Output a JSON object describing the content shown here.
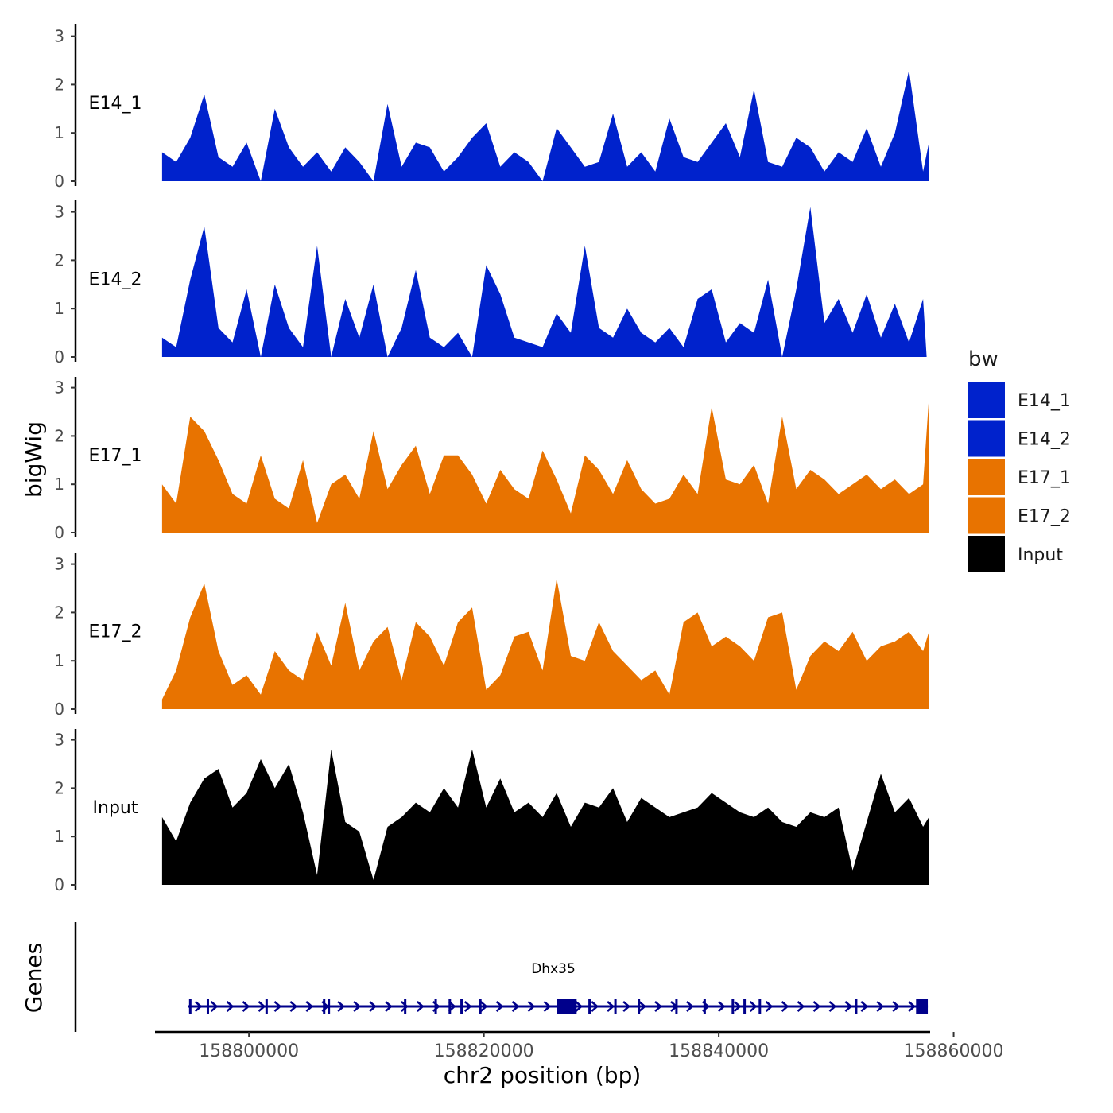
{
  "chart_data": {
    "type": "area",
    "y_axis_label": "bigWig",
    "genes_axis_label": "Genes",
    "x_axis_label": "chr2 position (bp)",
    "x_range": [
      158792000,
      158858000
    ],
    "x_ticks": [
      158800000,
      158820000,
      158840000,
      158860000
    ],
    "x_tick_labels": [
      "158800000",
      "158820000",
      "158840000",
      "158860000"
    ],
    "y_range": [
      0,
      3.2
    ],
    "y_ticks": [
      0,
      1,
      2,
      3
    ],
    "y_tick_labels": [
      "0",
      "1",
      "2",
      "3"
    ],
    "legend": {
      "title": "bw",
      "entries": [
        {
          "label": "E14_1",
          "color": "#0022CC"
        },
        {
          "label": "E14_2",
          "color": "#0022CC"
        },
        {
          "label": "E17_1",
          "color": "#E87300"
        },
        {
          "label": "E17_2",
          "color": "#E87300"
        },
        {
          "label": "Input",
          "color": "#000000"
        }
      ]
    },
    "tracks": [
      {
        "name": "E14_1",
        "color": "#0022CC",
        "x": [
          158792600,
          158793800,
          158795000,
          158796200,
          158797400,
          158798600,
          158799800,
          158801000,
          158802200,
          158803400,
          158804600,
          158805800,
          158807000,
          158808200,
          158809400,
          158810600,
          158811800,
          158813000,
          158814200,
          158815400,
          158816600,
          158817800,
          158819000,
          158820200,
          158821400,
          158822600,
          158823800,
          158825000,
          158826200,
          158827400,
          158828600,
          158829800,
          158831000,
          158832200,
          158833400,
          158834600,
          158835800,
          158837000,
          158838200,
          158839400,
          158840600,
          158841800,
          158843000,
          158844200,
          158845400,
          158846600,
          158847800,
          158849000,
          158850200,
          158851400,
          158852600,
          158853800,
          158855000,
          158856200,
          158857400,
          158857900
        ],
        "y": [
          0.6,
          0.4,
          0.9,
          1.8,
          0.5,
          0.3,
          0.8,
          0,
          1.5,
          0.7,
          0.3,
          0.6,
          0.2,
          0.7,
          0.4,
          0,
          1.6,
          0.3,
          0.8,
          0.7,
          0.2,
          0.5,
          0.9,
          1.2,
          0.3,
          0.6,
          0.4,
          0,
          1.1,
          0.7,
          0.3,
          0.4,
          1.4,
          0.3,
          0.6,
          0.2,
          1.3,
          0.5,
          0.4,
          0.8,
          1.2,
          0.5,
          1.9,
          0.4,
          0.3,
          0.9,
          0.7,
          0.2,
          0.6,
          0.4,
          1.1,
          0.3,
          1.0,
          2.3,
          0.2,
          0.8
        ]
      },
      {
        "name": "E14_2",
        "color": "#0022CC",
        "x": [
          158792600,
          158793800,
          158795000,
          158796200,
          158797400,
          158798600,
          158799800,
          158801000,
          158802200,
          158803400,
          158804600,
          158805800,
          158807000,
          158808200,
          158809400,
          158810600,
          158811800,
          158813000,
          158814200,
          158815400,
          158816600,
          158817800,
          158819000,
          158820200,
          158821400,
          158822600,
          158823800,
          158825000,
          158826200,
          158827400,
          158828600,
          158829800,
          158831000,
          158832200,
          158833400,
          158834600,
          158835800,
          158837000,
          158838200,
          158839400,
          158840600,
          158841800,
          158843000,
          158844200,
          158845400,
          158846600,
          158847800,
          158849000,
          158850200,
          158851400,
          158852600,
          158853800,
          158855000,
          158856200,
          158857400,
          158857700
        ],
        "y": [
          0.4,
          0.2,
          1.6,
          2.7,
          0.6,
          0.3,
          1.4,
          0,
          1.5,
          0.6,
          0.2,
          2.3,
          0,
          1.2,
          0.4,
          1.5,
          0,
          0.6,
          1.8,
          0.4,
          0.2,
          0.5,
          0,
          1.9,
          1.3,
          0.4,
          0.3,
          0.2,
          0.9,
          0.5,
          2.3,
          0.6,
          0.4,
          1.0,
          0.5,
          0.3,
          0.6,
          0.2,
          1.2,
          1.4,
          0.3,
          0.7,
          0.5,
          1.6,
          0,
          1.4,
          3.1,
          0.7,
          1.2,
          0.5,
          1.3,
          0.4,
          1.1,
          0.3,
          1.2,
          0
        ]
      },
      {
        "name": "E17_1",
        "color": "#E87300",
        "x": [
          158792600,
          158793800,
          158795000,
          158796200,
          158797400,
          158798600,
          158799800,
          158801000,
          158802200,
          158803400,
          158804600,
          158805800,
          158807000,
          158808200,
          158809400,
          158810600,
          158811800,
          158813000,
          158814200,
          158815400,
          158816600,
          158817800,
          158819000,
          158820200,
          158821400,
          158822600,
          158823800,
          158825000,
          158826200,
          158827400,
          158828600,
          158829800,
          158831000,
          158832200,
          158833400,
          158834600,
          158835800,
          158837000,
          158838200,
          158839400,
          158840600,
          158841800,
          158843000,
          158844200,
          158845400,
          158846600,
          158847800,
          158849000,
          158850200,
          158851400,
          158852600,
          158853800,
          158855000,
          158856200,
          158857400,
          158857900
        ],
        "y": [
          1.0,
          0.6,
          2.4,
          2.1,
          1.5,
          0.8,
          0.6,
          1.6,
          0.7,
          0.5,
          1.5,
          0.2,
          1.0,
          1.2,
          0.7,
          2.1,
          0.9,
          1.4,
          1.8,
          0.8,
          1.6,
          1.6,
          1.2,
          0.6,
          1.3,
          0.9,
          0.7,
          1.7,
          1.1,
          0.4,
          1.6,
          1.3,
          0.8,
          1.5,
          0.9,
          0.6,
          0.7,
          1.2,
          0.8,
          2.6,
          1.1,
          1.0,
          1.4,
          0.6,
          2.4,
          0.9,
          1.3,
          1.1,
          0.8,
          1.0,
          1.2,
          0.9,
          1.1,
          0.8,
          1.0,
          2.8
        ]
      },
      {
        "name": "E17_2",
        "color": "#E87300",
        "x": [
          158792600,
          158793800,
          158795000,
          158796200,
          158797400,
          158798600,
          158799800,
          158801000,
          158802200,
          158803400,
          158804600,
          158805800,
          158807000,
          158808200,
          158809400,
          158810600,
          158811800,
          158813000,
          158814200,
          158815400,
          158816600,
          158817800,
          158819000,
          158820200,
          158821400,
          158822600,
          158823800,
          158825000,
          158826200,
          158827400,
          158828600,
          158829800,
          158831000,
          158832200,
          158833400,
          158834600,
          158835800,
          158837000,
          158838200,
          158839400,
          158840600,
          158841800,
          158843000,
          158844200,
          158845400,
          158846600,
          158847800,
          158849000,
          158850200,
          158851400,
          158852600,
          158853800,
          158855000,
          158856200,
          158857400,
          158857900
        ],
        "y": [
          0.2,
          0.8,
          1.9,
          2.6,
          1.2,
          0.5,
          0.7,
          0.3,
          1.2,
          0.8,
          0.6,
          1.6,
          0.9,
          2.2,
          0.8,
          1.4,
          1.7,
          0.6,
          1.8,
          1.5,
          0.9,
          1.8,
          2.1,
          0.4,
          0.7,
          1.5,
          1.6,
          0.8,
          2.7,
          1.1,
          1.0,
          1.8,
          1.2,
          0.9,
          0.6,
          0.8,
          0.3,
          1.8,
          2.0,
          1.3,
          1.5,
          1.3,
          1.0,
          1.9,
          2.0,
          0.4,
          1.1,
          1.4,
          1.2,
          1.6,
          1.0,
          1.3,
          1.4,
          1.6,
          1.2,
          1.6
        ]
      },
      {
        "name": "Input",
        "color": "#000000",
        "x": [
          158792600,
          158793800,
          158795000,
          158796200,
          158797400,
          158798600,
          158799800,
          158801000,
          158802200,
          158803400,
          158804600,
          158805800,
          158807000,
          158808200,
          158809400,
          158810600,
          158811800,
          158813000,
          158814200,
          158815400,
          158816600,
          158817800,
          158819000,
          158820200,
          158821400,
          158822600,
          158823800,
          158825000,
          158826200,
          158827400,
          158828600,
          158829800,
          158831000,
          158832200,
          158833400,
          158834600,
          158835800,
          158837000,
          158838200,
          158839400,
          158840600,
          158841800,
          158843000,
          158844200,
          158845400,
          158846600,
          158847800,
          158849000,
          158850200,
          158851400,
          158852600,
          158853800,
          158855000,
          158856200,
          158857400,
          158857900
        ],
        "y": [
          1.4,
          0.9,
          1.7,
          2.2,
          2.4,
          1.6,
          1.9,
          2.6,
          2.0,
          2.5,
          1.5,
          0.2,
          2.8,
          1.3,
          1.1,
          0.1,
          1.2,
          1.4,
          1.7,
          1.5,
          2.0,
          1.6,
          2.8,
          1.6,
          2.2,
          1.5,
          1.7,
          1.4,
          1.9,
          1.2,
          1.7,
          1.6,
          2.0,
          1.3,
          1.8,
          1.6,
          1.4,
          1.5,
          1.6,
          1.9,
          1.7,
          1.5,
          1.4,
          1.6,
          1.3,
          1.2,
          1.5,
          1.4,
          1.6,
          0.3,
          1.3,
          2.3,
          1.5,
          1.8,
          1.2,
          1.4
        ]
      }
    ],
    "gene": {
      "name": "Dhx35",
      "strand": "+",
      "start": 158794800,
      "end": 158857800,
      "color": "#00008B",
      "exons": [
        158795000,
        158796500,
        158801500,
        158806400,
        158806800,
        158813300,
        158815900,
        158817100,
        158818100,
        158819700,
        158827100,
        158829000,
        158831200,
        158833200,
        158836400,
        158838800,
        158841200,
        158842200,
        158843500,
        158851700,
        158857400
      ],
      "utr_boxes": [
        [
          158826200,
          158827900
        ],
        [
          158856800,
          158857800
        ]
      ]
    }
  }
}
